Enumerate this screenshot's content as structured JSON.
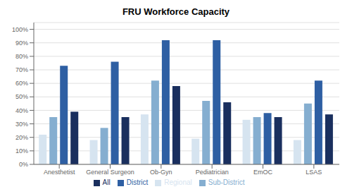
{
  "chart_data": {
    "type": "bar",
    "title": "FRU Workforce Capacity",
    "categories": [
      "Anesthetist",
      "General Surgeon",
      "Ob-Gyn",
      "Pediatrician",
      "EmOC",
      "LSAS"
    ],
    "series": [
      {
        "name": "Regional",
        "color": "#d6e4f0",
        "values": [
          0.22,
          0.18,
          0.37,
          0.19,
          0.33,
          0.18
        ]
      },
      {
        "name": "Sub-District",
        "color": "#85aed0",
        "values": [
          0.35,
          0.27,
          0.62,
          0.47,
          0.35,
          0.45
        ]
      },
      {
        "name": "District",
        "color": "#2e5fa3",
        "values": [
          0.73,
          0.76,
          0.92,
          0.92,
          0.38,
          0.62
        ]
      },
      {
        "name": "All",
        "color": "#1a2f5e",
        "values": [
          0.39,
          0.35,
          0.58,
          0.46,
          0.35,
          0.37
        ]
      }
    ],
    "ylim": [
      0,
      1.05
    ],
    "yticks": [
      {
        "value": 0,
        "label": "0%"
      },
      {
        "value": 0.1,
        "label": "10%"
      },
      {
        "value": 0.2,
        "label": "20%"
      },
      {
        "value": 0.3,
        "label": "30%"
      },
      {
        "value": 0.4,
        "label": "40%"
      },
      {
        "value": 0.5,
        "label": "50%"
      },
      {
        "value": 0.6,
        "label": "60%"
      },
      {
        "value": 0.7,
        "label": "70%"
      },
      {
        "value": 0.8,
        "label": "80%"
      },
      {
        "value": 0.9,
        "label": "90%"
      },
      {
        "value": 1.0,
        "label": "100%"
      }
    ],
    "grid": true,
    "legend": "bottom"
  }
}
